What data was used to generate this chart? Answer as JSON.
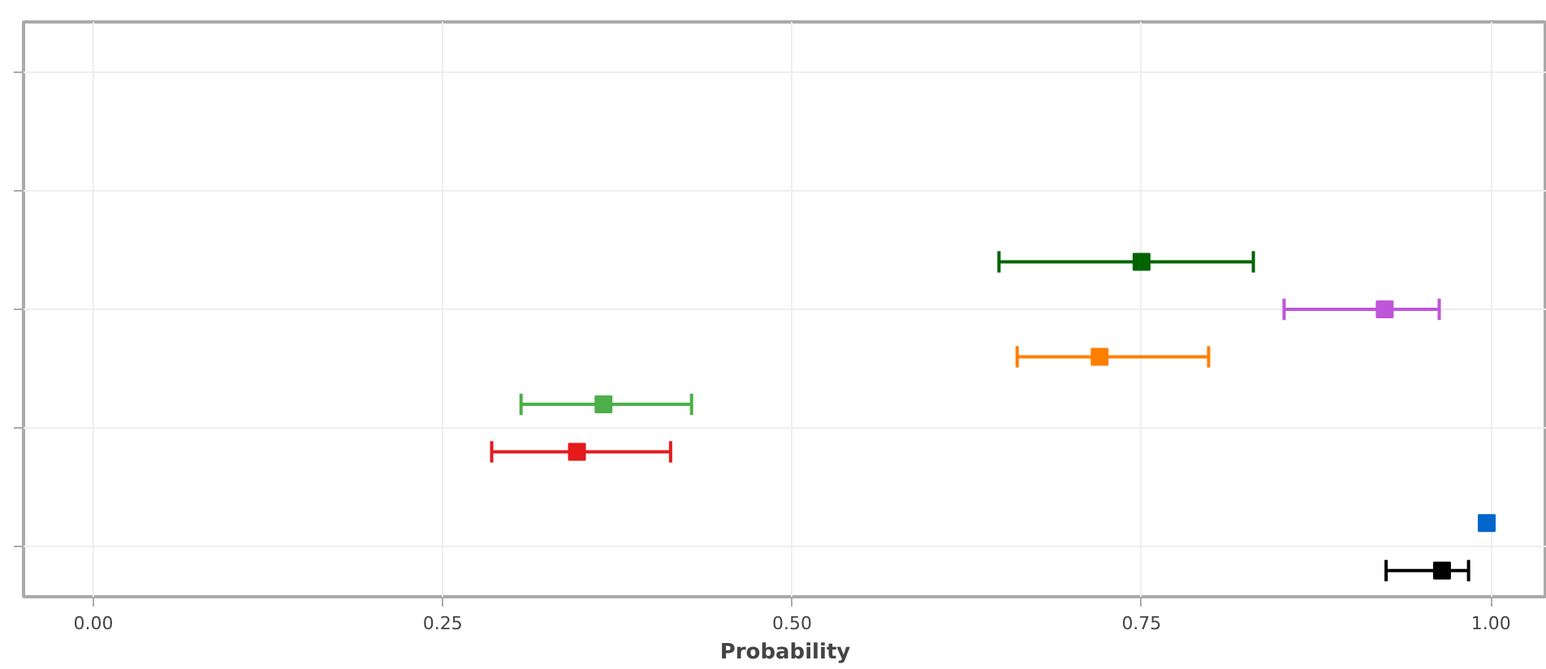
{
  "chart_data": {
    "type": "scatter",
    "orientation": "horizontal",
    "xlabel": "Probability",
    "categories": [
      null,
      null,
      null,
      null,
      null
    ],
    "series": [
      {
        "colors": [
          null,
          null,
          "#006400",
          "#4daf4a",
          "#0066cc"
        ],
        "values": [
          null,
          null,
          0.75,
          0.365,
          0.997
        ],
        "errors": [
          null,
          null,
          [
            0.648,
            0.83
          ],
          [
            0.306,
            0.428
          ],
          null
        ]
      },
      {
        "colors": [
          null,
          null,
          "#bf55d8",
          "#e41a1c",
          "#000000"
        ],
        "values": [
          null,
          null,
          0.924,
          0.346,
          0.965
        ],
        "errors": [
          null,
          null,
          [
            0.852,
            0.963
          ],
          [
            0.285,
            0.413
          ],
          [
            0.925,
            0.984
          ]
        ]
      },
      {
        "colors": [
          null,
          null,
          "#ff7f00",
          null,
          null
        ],
        "values": [
          null,
          null,
          0.72,
          null,
          null
        ],
        "errors": [
          null,
          null,
          [
            0.661,
            0.798
          ],
          null,
          null
        ]
      }
    ],
    "xlim": [
      -0.05,
      1.04
    ],
    "xticks": [
      {
        "value": 0,
        "label": "0.00"
      },
      {
        "value": 0.25,
        "label": "0.25"
      },
      {
        "value": 0.5,
        "label": "0.50"
      },
      {
        "value": 0.75,
        "label": "0.75"
      },
      {
        "value": 1,
        "label": "1.00"
      }
    ],
    "grid": true,
    "marker": "square",
    "tick_labels": "x"
  }
}
